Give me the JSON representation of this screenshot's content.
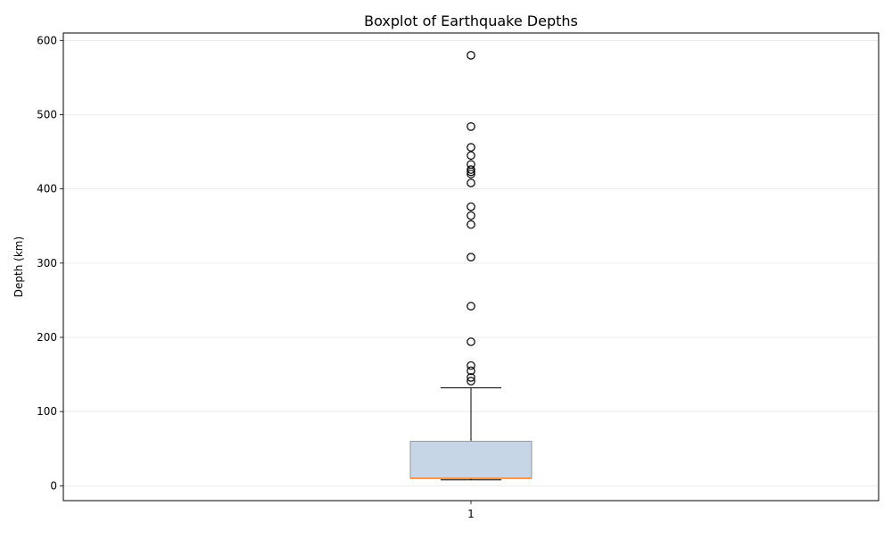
{
  "chart_data": {
    "type": "box",
    "title": "Boxplot of Earthquake Depths",
    "xlabel": "",
    "ylabel": "Depth (km)",
    "categories": [
      "1"
    ],
    "ylim": [
      -20,
      610
    ],
    "yticks": [
      0,
      100,
      200,
      300,
      400,
      500,
      600
    ],
    "grid": {
      "y": true,
      "x": false
    },
    "box": {
      "whisker_low": 8,
      "q1": 10,
      "median": 10,
      "q3": 60,
      "whisker_high": 132,
      "fill": "#c6d6e6",
      "edge": "#999999",
      "median_color": "#ff7f0e"
    },
    "outliers": [
      141,
      146,
      155,
      162,
      194,
      242,
      308,
      352,
      364,
      376,
      408,
      420,
      423,
      426,
      433,
      445,
      456,
      484,
      580
    ]
  }
}
